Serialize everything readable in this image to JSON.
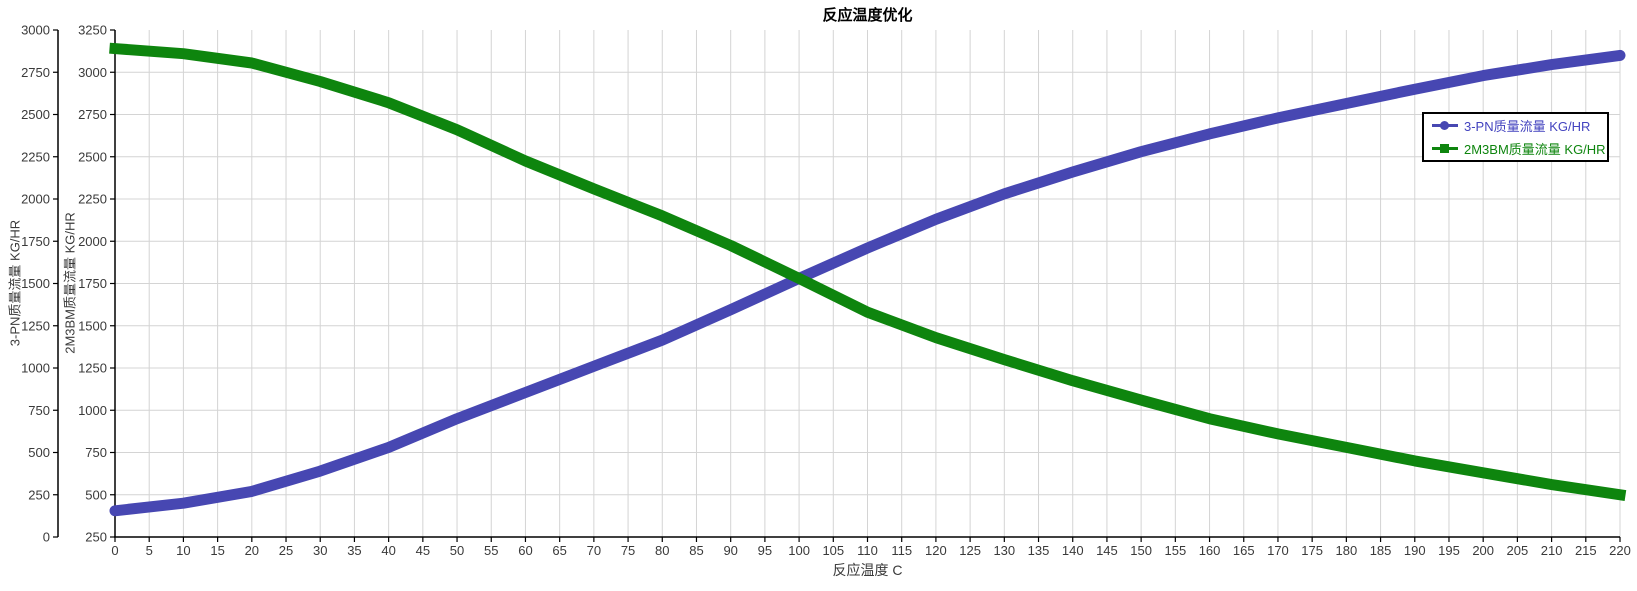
{
  "title": "反应温度优化",
  "x_axis_title": "反应温度 C",
  "y_axis_outer_title": "3-PN质量流量  KG/HR",
  "y_axis_inner_title": "2M3BM质量流量  KG/HR",
  "colors": {
    "series_blue": "#4747B2",
    "series_green": "#0E850E",
    "legend_text_blue": "#4343BF",
    "legend_text_green": "#0E850E",
    "gridline": "#d4d4d4",
    "axis": "#000000",
    "tick_label": "#3a3a3a"
  },
  "chart_data": {
    "type": "line",
    "title": "反应温度优化",
    "xlabel": "反应温度 C",
    "grid": true,
    "legend_position": "upper right",
    "x_axis": {
      "min": 0,
      "max": 220,
      "tick_step": 5,
      "label_step": 5
    },
    "y_axes": [
      {
        "position": "outer-left",
        "title": "3-PN质量流量  KG/HR",
        "min": 0,
        "max": 3000,
        "tick_step": 250
      },
      {
        "position": "inner-left",
        "title": "2M3BM质量流量  KG/HR",
        "min": 250,
        "max": 3250,
        "tick_step": 250
      }
    ],
    "x": [
      0,
      10,
      20,
      30,
      40,
      50,
      60,
      70,
      80,
      90,
      100,
      110,
      120,
      130,
      140,
      150,
      160,
      170,
      180,
      190,
      200,
      210,
      220
    ],
    "series": [
      {
        "name": "3-PN质量流量 KG/HR",
        "axis": 0,
        "marker": "circle",
        "color": "#4747B2",
        "values": [
          155,
          200,
          270,
          390,
          530,
          700,
          855,
          1010,
          1165,
          1345,
          1530,
          1710,
          1880,
          2030,
          2160,
          2280,
          2385,
          2480,
          2565,
          2650,
          2730,
          2795,
          2850
        ]
      },
      {
        "name": "2M3BM质量流量 KG/HR",
        "axis": 1,
        "marker": "square",
        "color": "#0E850E",
        "values": [
          3140,
          3110,
          3055,
          2945,
          2820,
          2660,
          2475,
          2310,
          2150,
          1975,
          1780,
          1580,
          1430,
          1300,
          1175,
          1060,
          950,
          860,
          780,
          700,
          630,
          560,
          500
        ]
      }
    ]
  }
}
